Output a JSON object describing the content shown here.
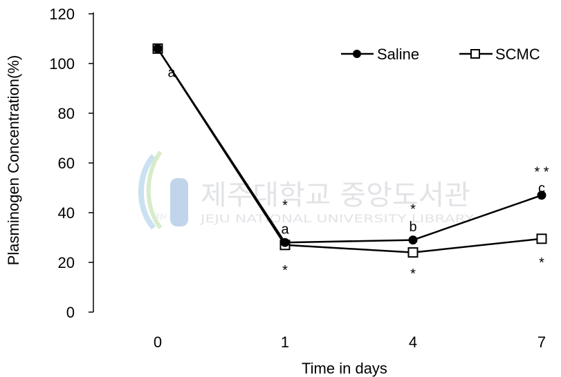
{
  "chart_data": {
    "type": "line",
    "title": "",
    "xlabel": "Time in days",
    "ylabel": "Plasminogen Concentration(%)",
    "ylim": [
      0,
      120
    ],
    "yticks": [
      "0",
      "20",
      "40",
      "60",
      "80",
      "100",
      "120"
    ],
    "categories": [
      "0",
      "1",
      "4",
      "7"
    ],
    "grid": false,
    "legend_position": "top-right",
    "series": [
      {
        "name": "Saline",
        "values": [
          106,
          28,
          29,
          47
        ],
        "marker": "filled-circle",
        "color": "#000000"
      },
      {
        "name": "SCMC",
        "values": [
          106,
          27,
          24,
          29.5
        ],
        "marker": "open-square",
        "color": "#000000"
      }
    ],
    "annotations": [
      {
        "text": "a",
        "category": "0",
        "y": 96.5
      },
      {
        "text": "a",
        "category": "1",
        "y": 33.5
      },
      {
        "text": "b",
        "category": "4",
        "y": 34.5
      },
      {
        "text": "c",
        "category": "7",
        "y": 50
      },
      {
        "text": "*",
        "category": "1",
        "y": 43
      },
      {
        "text": "*",
        "category": "4",
        "y": 41.5
      },
      {
        "text": "* *",
        "category": "7",
        "y": 56.5
      },
      {
        "text": "*",
        "category": "1",
        "y": 17
      },
      {
        "text": "*",
        "category": "4",
        "y": 15.5
      },
      {
        "text": "*",
        "category": "7",
        "y": 20
      }
    ]
  },
  "watermark": {
    "korean": "제주대학교 중앙도서관",
    "english": "JEJU NATIONAL UNIVERSITY LIBRARY",
    "logo_text": "JEJU"
  }
}
